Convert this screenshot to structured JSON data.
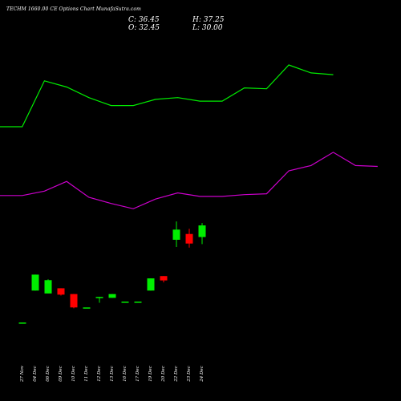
{
  "header": {
    "title": "TECHM 1660.00  CE Options  Chart MunafaSutra.com",
    "close_label": "C: 36.45",
    "open_label": "O: 32.45",
    "high_label": "H: 37.25",
    "low_label": "L: 30.00"
  },
  "chart_data": {
    "type": "candlestick",
    "title": "TECHM 1660.00  CE Options  Chart MunafaSutra.com",
    "grid": false,
    "colors": {
      "background": "#000000",
      "up": "#00ee00",
      "down": "#ff0000",
      "upper_band": "#00ee00",
      "lower_band": "#cc00cc",
      "text": "#ffffff"
    },
    "dates": [
      "27 Nov",
      "04 Dec",
      "06 Dec",
      "09 Dec",
      "10 Dec",
      "11 Dec",
      "12 Dec",
      "13 Dec",
      "16 Dec",
      "17 Dec",
      "19 Dec",
      "20 Dec",
      "22 Dec",
      "23 Dec",
      "24 Dec"
    ],
    "candles": [
      {
        "date": "27 Nov",
        "open": 3.0,
        "high": 3.0,
        "low": 3.0,
        "close": 3.0
      },
      {
        "date": "04 Dec",
        "open": 14.0,
        "high": 19.5,
        "low": 14.0,
        "close": 19.5
      },
      {
        "date": "06 Dec",
        "open": 13.0,
        "high": 17.9,
        "low": 13.0,
        "close": 17.6
      },
      {
        "date": "09 Dec",
        "open": 14.8,
        "high": 14.8,
        "low": 12.3,
        "close": 12.6
      },
      {
        "date": "10 Dec",
        "open": 12.8,
        "high": 12.8,
        "low": 7.9,
        "close": 8.2
      },
      {
        "date": "11 Dec",
        "open": 8.2,
        "high": 8.2,
        "low": 8.2,
        "close": 8.2
      },
      {
        "date": "12 Dec",
        "open": 11.5,
        "high": 11.8,
        "low": 9.8,
        "close": 11.8
      },
      {
        "date": "13 Dec",
        "open": 11.5,
        "high": 12.8,
        "low": 11.5,
        "close": 12.8
      },
      {
        "date": "16 Dec",
        "open": 10.2,
        "high": 10.2,
        "low": 10.2,
        "close": 10.2
      },
      {
        "date": "17 Dec",
        "open": 10.2,
        "high": 10.2,
        "low": 10.2,
        "close": 10.2
      },
      {
        "date": "19 Dec",
        "open": 14.0,
        "high": 18.2,
        "low": 14.0,
        "close": 18.2
      },
      {
        "date": "20 Dec",
        "open": 19.0,
        "high": 19.0,
        "low": 16.8,
        "close": 17.5
      },
      {
        "date": "22 Dec",
        "open": 31.5,
        "high": 37.8,
        "low": 29.0,
        "close": 35.0
      },
      {
        "date": "23 Dec",
        "open": 33.5,
        "high": 35.3,
        "low": 28.8,
        "close": 30.2
      },
      {
        "date": "24 Dec",
        "open": 32.45,
        "high": 37.25,
        "low": 30.0,
        "close": 36.45
      }
    ],
    "upper_band": [
      220,
      220,
      272,
      265,
      253,
      244,
      244,
      251,
      253,
      249,
      249,
      264,
      263,
      290,
      281,
      279
    ],
    "lower_band": [
      142,
      142,
      147,
      158,
      140,
      133,
      127,
      138,
      145,
      141,
      141,
      143,
      144,
      170,
      176,
      191,
      176,
      175
    ]
  }
}
